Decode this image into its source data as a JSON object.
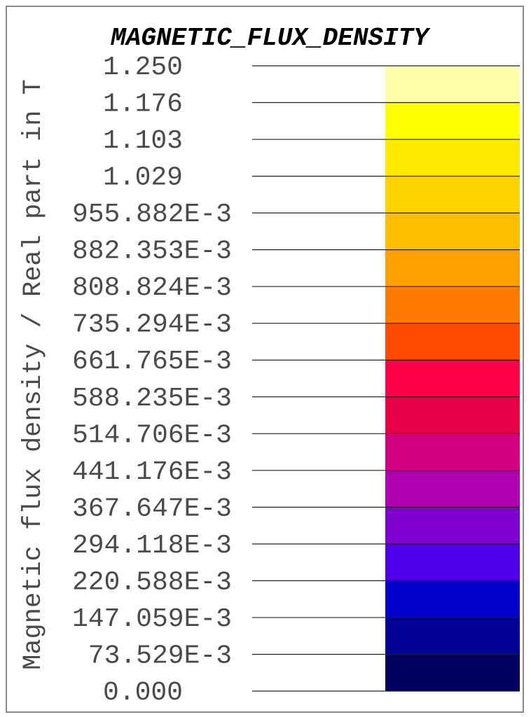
{
  "chart_data": {
    "type": "colorbar",
    "title": "MAGNETIC_FLUX_DENSITY",
    "ylabel": "Magnetic flux density / Real part in T",
    "tick_labels": [
      "1.250",
      "1.176",
      "1.103",
      "1.029",
      "955.882E-3",
      "882.353E-3",
      "808.824E-3",
      "735.294E-3",
      "661.765E-3",
      "588.235E-3",
      "514.706E-3",
      "441.176E-3",
      "367.647E-3",
      "294.118E-3",
      "220.588E-3",
      "147.059E-3",
      "73.529E-3",
      "0.000"
    ],
    "ticks": [
      1.25,
      1.176,
      1.103,
      1.029,
      0.955882,
      0.882353,
      0.808824,
      0.735294,
      0.661765,
      0.588235,
      0.514706,
      0.441176,
      0.367647,
      0.294118,
      0.220588,
      0.147059,
      0.073529,
      0.0
    ],
    "ylim": [
      0,
      1.25
    ],
    "band_colors_top_to_bottom": [
      "#fdfdaa",
      "#ffff00",
      "#ffea00",
      "#ffd500",
      "#ffbf00",
      "#ffa000",
      "#ff7a00",
      "#ff4800",
      "#ff0048",
      "#ea0048",
      "#d10082",
      "#ae00ae",
      "#8000d0",
      "#5000e8",
      "#0000c8",
      "#000096",
      "#000060"
    ]
  }
}
